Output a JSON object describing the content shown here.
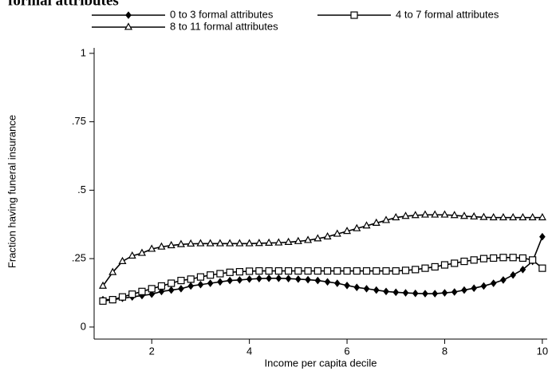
{
  "chart_data": {
    "type": "line",
    "title": "formal attributes",
    "xlabel": "Income per capita decile",
    "ylabel": "Fraction having funeral insurance",
    "xlim": [
      0.82,
      10.1
    ],
    "xticks": [
      2,
      4,
      6,
      8,
      10
    ],
    "ylim": [
      -0.044,
      1.02
    ],
    "yticks": [
      0,
      {
        "value": 0.25,
        "label": ".25"
      },
      {
        "value": 0.5,
        "label": ".5"
      },
      {
        "value": 0.75,
        "label": ".75"
      },
      1
    ],
    "grid": false,
    "legend": "top",
    "x": [
      1,
      1.2,
      1.4,
      1.6,
      1.8,
      2,
      2.2,
      2.4,
      2.6,
      2.8,
      3,
      3.2,
      3.4,
      3.6,
      3.8,
      4,
      4.2,
      4.4,
      4.6,
      4.8,
      5,
      5.2,
      5.4,
      5.6,
      5.8,
      6,
      6.2,
      6.4,
      6.6,
      6.8,
      7,
      7.2,
      7.4,
      7.6,
      7.8,
      8,
      8.2,
      8.4,
      8.6,
      8.8,
      9,
      9.2,
      9.4,
      9.6,
      9.8,
      10
    ],
    "series": [
      {
        "name": "0 to 3 formal attributes",
        "color": "#000000",
        "marker": "diamond",
        "values": [
          0.1,
          0.1,
          0.105,
          0.11,
          0.115,
          0.12,
          0.13,
          0.135,
          0.14,
          0.15,
          0.155,
          0.16,
          0.165,
          0.17,
          0.172,
          0.175,
          0.177,
          0.178,
          0.178,
          0.177,
          0.175,
          0.173,
          0.17,
          0.165,
          0.16,
          0.152,
          0.145,
          0.14,
          0.135,
          0.13,
          0.127,
          0.125,
          0.123,
          0.122,
          0.122,
          0.125,
          0.128,
          0.135,
          0.142,
          0.15,
          0.16,
          0.172,
          0.19,
          0.21,
          0.24,
          0.33
        ]
      },
      {
        "name": "4 to 7 formal attributes",
        "color": "#000000",
        "marker": "square",
        "values": [
          0.095,
          0.1,
          0.11,
          0.12,
          0.13,
          0.14,
          0.15,
          0.16,
          0.17,
          0.175,
          0.183,
          0.19,
          0.195,
          0.2,
          0.202,
          0.204,
          0.205,
          0.205,
          0.205,
          0.205,
          0.205,
          0.205,
          0.205,
          0.205,
          0.205,
          0.205,
          0.205,
          0.205,
          0.205,
          0.205,
          0.205,
          0.207,
          0.21,
          0.215,
          0.22,
          0.227,
          0.233,
          0.24,
          0.245,
          0.25,
          0.252,
          0.254,
          0.254,
          0.252,
          0.245,
          0.215
        ]
      },
      {
        "name": "8 to 11 formal attributes",
        "color": "#000000",
        "marker": "triangle",
        "values": [
          0.15,
          0.2,
          0.24,
          0.26,
          0.27,
          0.285,
          0.293,
          0.298,
          0.302,
          0.304,
          0.305,
          0.305,
          0.305,
          0.305,
          0.305,
          0.305,
          0.306,
          0.307,
          0.308,
          0.31,
          0.313,
          0.317,
          0.323,
          0.33,
          0.34,
          0.35,
          0.36,
          0.37,
          0.38,
          0.39,
          0.4,
          0.405,
          0.408,
          0.41,
          0.41,
          0.41,
          0.408,
          0.405,
          0.403,
          0.401,
          0.4,
          0.4,
          0.4,
          0.4,
          0.4,
          0.4
        ]
      }
    ]
  }
}
